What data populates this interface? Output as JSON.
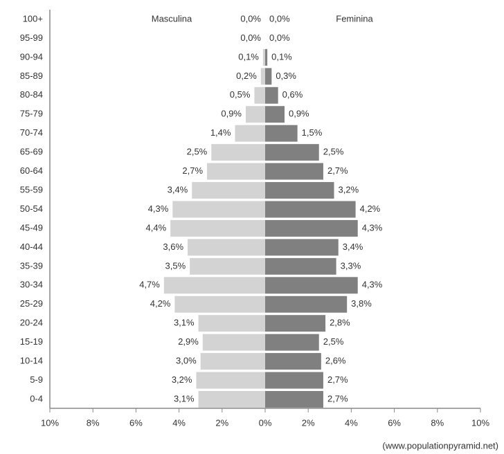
{
  "chart_data": {
    "type": "pyramid",
    "categories": [
      "100+",
      "95-99",
      "90-94",
      "85-89",
      "80-84",
      "75-79",
      "70-74",
      "65-69",
      "60-64",
      "55-59",
      "50-54",
      "45-49",
      "40-44",
      "35-39",
      "30-34",
      "25-29",
      "20-24",
      "15-19",
      "10-14",
      "5-9",
      "0-4"
    ],
    "series": [
      {
        "name": "Masculina",
        "color": "#d3d3d3",
        "side": "left",
        "values": [
          0.0,
          0.0,
          0.1,
          0.2,
          0.5,
          0.9,
          1.4,
          2.5,
          2.7,
          3.4,
          4.3,
          4.4,
          3.6,
          3.5,
          4.7,
          4.2,
          3.1,
          2.9,
          3.0,
          3.2,
          3.1
        ],
        "value_labels": [
          "0,0%",
          "0,0%",
          "0,1%",
          "0,2%",
          "0,5%",
          "0,9%",
          "1,4%",
          "2,5%",
          "2,7%",
          "3,4%",
          "4,3%",
          "4,4%",
          "3,6%",
          "3,5%",
          "4,7%",
          "4,2%",
          "3,1%",
          "2,9%",
          "3,0%",
          "3,2%",
          "3,1%"
        ]
      },
      {
        "name": "Feminina",
        "color": "#808080",
        "side": "right",
        "values": [
          0.0,
          0.0,
          0.1,
          0.3,
          0.6,
          0.9,
          1.5,
          2.5,
          2.7,
          3.2,
          4.2,
          4.3,
          3.4,
          3.3,
          4.3,
          3.8,
          2.8,
          2.5,
          2.6,
          2.7,
          2.7
        ],
        "value_labels": [
          "0,0%",
          "0,0%",
          "0,1%",
          "0,3%",
          "0,6%",
          "0,9%",
          "1,5%",
          "2,5%",
          "2,7%",
          "3,2%",
          "4,2%",
          "4,3%",
          "3,4%",
          "3,3%",
          "4,3%",
          "3,8%",
          "2,8%",
          "2,5%",
          "2,6%",
          "2,7%",
          "2,7%"
        ]
      }
    ],
    "xlim": [
      -10,
      10
    ],
    "xticks": [
      {
        "value": -10,
        "label": "10%"
      },
      {
        "value": -8,
        "label": "8%"
      },
      {
        "value": -6,
        "label": "6%"
      },
      {
        "value": -4,
        "label": "4%"
      },
      {
        "value": -2,
        "label": "2%"
      },
      {
        "value": 0,
        "label": "0%"
      },
      {
        "value": 2,
        "label": "2%"
      },
      {
        "value": 4,
        "label": "4%"
      },
      {
        "value": 6,
        "label": "6%"
      },
      {
        "value": 8,
        "label": "8%"
      },
      {
        "value": 10,
        "label": "10%"
      }
    ],
    "source": "(www.populationpyramid.net)"
  }
}
